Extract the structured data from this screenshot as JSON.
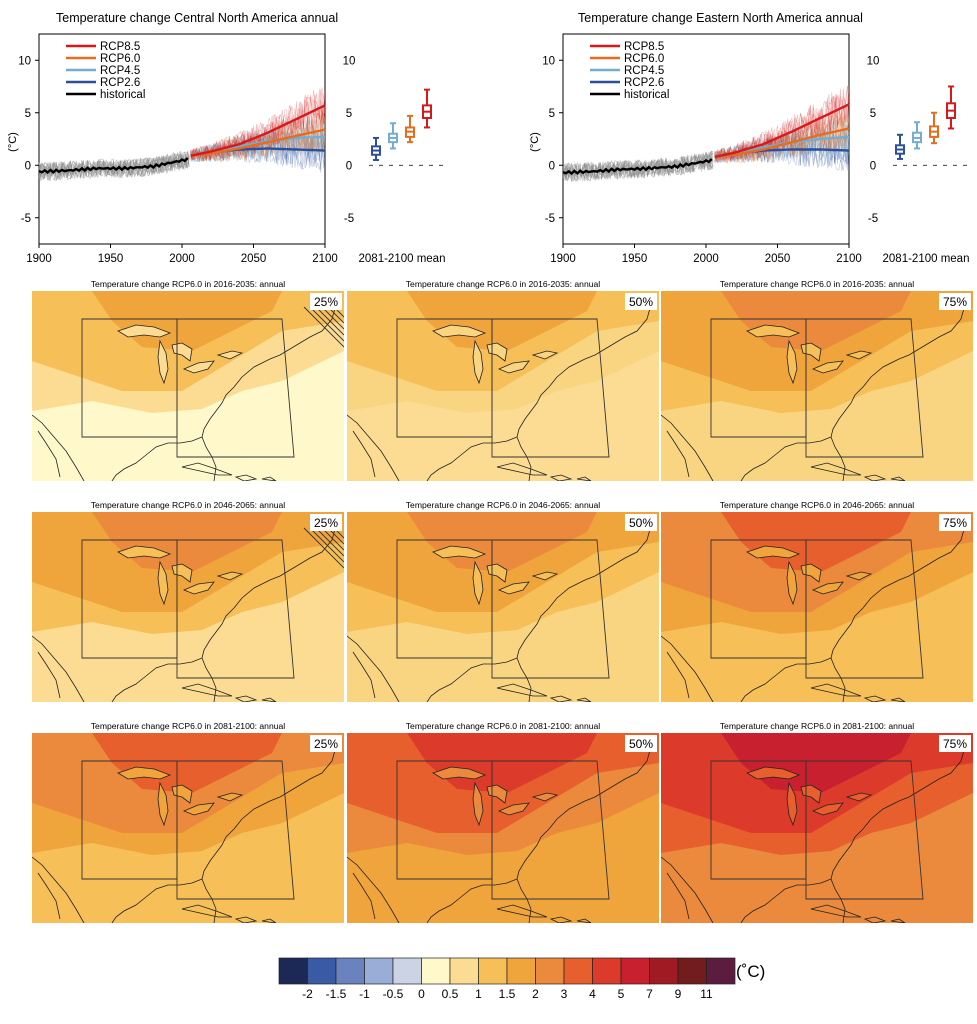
{
  "chart_data": [
    {
      "type": "line",
      "title": "Temperature change Central North America annual",
      "ylabel": "(°C)",
      "xlim": [
        1900,
        2100
      ],
      "ylim": [
        -7.5,
        12.5
      ],
      "x_ticks": [
        "1900",
        "1950",
        "2000",
        "2050",
        "2100"
      ],
      "y_ticks": [
        "10",
        "5",
        "0",
        "-5"
      ],
      "legend_position": "top-left",
      "series": [
        {
          "name": "RCP8.5",
          "color": "#d7191c",
          "x": [
            2006,
            2020,
            2040,
            2060,
            2080,
            2100
          ],
          "values": [
            0.9,
            1.3,
            2.0,
            3.1,
            4.4,
            5.7
          ]
        },
        {
          "name": "RCP6.0",
          "color": "#e66c1e",
          "x": [
            2006,
            2020,
            2040,
            2060,
            2080,
            2100
          ],
          "values": [
            0.9,
            1.1,
            1.6,
            2.2,
            2.8,
            3.4
          ]
        },
        {
          "name": "RCP4.5",
          "color": "#74add1",
          "x": [
            2006,
            2020,
            2040,
            2060,
            2080,
            2100
          ],
          "values": [
            0.9,
            1.2,
            1.8,
            2.3,
            2.6,
            2.7
          ]
        },
        {
          "name": "RCP2.6",
          "color": "#2c4f9a",
          "x": [
            2006,
            2020,
            2040,
            2060,
            2080,
            2100
          ],
          "values": [
            0.9,
            1.2,
            1.5,
            1.6,
            1.5,
            1.4
          ]
        },
        {
          "name": "historical",
          "color": "#000000",
          "x": [
            1900,
            1920,
            1940,
            1960,
            1980,
            2005
          ],
          "values": [
            -0.6,
            -0.5,
            -0.3,
            -0.3,
            -0.1,
            0.6
          ]
        }
      ],
      "side_panel": {
        "label": "2081-2100 mean",
        "boxes": [
          {
            "name": "RCP2.6",
            "color": "#2c4f9a",
            "min": 0.5,
            "q1": 1.0,
            "median": 1.4,
            "q3": 1.8,
            "max": 2.6
          },
          {
            "name": "RCP4.5",
            "color": "#74add1",
            "min": 1.6,
            "q1": 2.2,
            "median": 2.6,
            "q3": 3.0,
            "max": 4.0
          },
          {
            "name": "RCP6.0",
            "color": "#e66c1e",
            "min": 2.2,
            "q1": 2.7,
            "median": 3.2,
            "q3": 3.6,
            "max": 4.7
          },
          {
            "name": "RCP8.5",
            "color": "#d7191c",
            "min": 3.6,
            "q1": 4.5,
            "median": 5.1,
            "q3": 5.7,
            "max": 7.2
          }
        ],
        "zero_line": true
      }
    },
    {
      "type": "line",
      "title": "Temperature change Eastern North America annual",
      "ylabel": "(°C)",
      "xlim": [
        1900,
        2100
      ],
      "ylim": [
        -7.5,
        12.5
      ],
      "x_ticks": [
        "1900",
        "1950",
        "2000",
        "2050",
        "2100"
      ],
      "y_ticks": [
        "10",
        "5",
        "0",
        "-5"
      ],
      "legend_position": "top-left",
      "series": [
        {
          "name": "RCP8.5",
          "color": "#d7191c",
          "x": [
            2006,
            2020,
            2040,
            2060,
            2080,
            2100
          ],
          "values": [
            0.8,
            1.2,
            2.0,
            3.2,
            4.5,
            5.8
          ]
        },
        {
          "name": "RCP6.0",
          "color": "#e66c1e",
          "x": [
            2006,
            2020,
            2040,
            2060,
            2080,
            2100
          ],
          "values": [
            0.8,
            1.0,
            1.5,
            2.2,
            2.9,
            3.5
          ]
        },
        {
          "name": "RCP4.5",
          "color": "#74add1",
          "x": [
            2006,
            2020,
            2040,
            2060,
            2080,
            2100
          ],
          "values": [
            0.8,
            1.1,
            1.7,
            2.2,
            2.5,
            2.7
          ]
        },
        {
          "name": "RCP2.6",
          "color": "#2c4f9a",
          "x": [
            2006,
            2020,
            2040,
            2060,
            2080,
            2100
          ],
          "values": [
            0.8,
            1.1,
            1.4,
            1.5,
            1.5,
            1.4
          ]
        },
        {
          "name": "historical",
          "color": "#000000",
          "x": [
            1900,
            1920,
            1940,
            1960,
            1980,
            2005
          ],
          "values": [
            -0.7,
            -0.6,
            -0.4,
            -0.3,
            -0.1,
            0.5
          ]
        }
      ],
      "side_panel": {
        "label": "2081-2100 mean",
        "boxes": [
          {
            "name": "RCP2.6",
            "color": "#2c4f9a",
            "min": 0.6,
            "q1": 1.1,
            "median": 1.5,
            "q3": 1.9,
            "max": 2.9
          },
          {
            "name": "RCP4.5",
            "color": "#74add1",
            "min": 1.6,
            "q1": 2.2,
            "median": 2.6,
            "q3": 3.1,
            "max": 4.1
          },
          {
            "name": "RCP6.0",
            "color": "#e66c1e",
            "min": 2.1,
            "q1": 2.7,
            "median": 3.2,
            "q3": 3.7,
            "max": 5.0
          },
          {
            "name": "RCP8.5",
            "color": "#d7191c",
            "min": 3.5,
            "q1": 4.5,
            "median": 5.2,
            "q3": 5.9,
            "max": 7.5
          }
        ],
        "zero_line": true
      }
    },
    {
      "type": "heatmap",
      "title": "Temperature change RCP6.0 in 2016-2035: annual",
      "percentile": "25%",
      "colors": {
        "a": "#fef8cb",
        "b": "#fbdc92",
        "c": "#f6bf57",
        "d": "#f0a43c"
      },
      "hatching": true
    },
    {
      "type": "heatmap",
      "title": "Temperature change RCP6.0 in 2016-2035: annual",
      "percentile": "50%",
      "colors": {
        "a": "#fbdc92",
        "b": "#f9d581",
        "c": "#f6bf57",
        "d": "#f0a43c"
      },
      "hatching": false
    },
    {
      "type": "heatmap",
      "title": "Temperature change RCP6.0 in 2016-2035: annual",
      "percentile": "75%",
      "colors": {
        "a": "#f9d581",
        "b": "#f6bf57",
        "c": "#f0a43c",
        "d": "#eb8a3c"
      },
      "hatching": false
    },
    {
      "type": "heatmap",
      "title": "Temperature change RCP6.0 in 2046-2065: annual",
      "percentile": "25%",
      "colors": {
        "a": "#fbdc92",
        "b": "#f6bf57",
        "c": "#f0a43c",
        "d": "#eb8a3c"
      },
      "hatching": true
    },
    {
      "type": "heatmap",
      "title": "Temperature change RCP6.0 in 2046-2065: annual",
      "percentile": "50%",
      "colors": {
        "a": "#f9d581",
        "b": "#f6bf57",
        "c": "#f0a43c",
        "d": "#eb8a3c"
      },
      "hatching": false
    },
    {
      "type": "heatmap",
      "title": "Temperature change RCP6.0 in 2046-2065: annual",
      "percentile": "75%",
      "colors": {
        "a": "#f6bf57",
        "b": "#f0a43c",
        "c": "#eb8a3c",
        "d": "#e85f2e"
      },
      "hatching": false
    },
    {
      "type": "heatmap",
      "title": "Temperature change RCP6.0 in 2081-2100: annual",
      "percentile": "25%",
      "colors": {
        "a": "#f6bf57",
        "b": "#f0a43c",
        "c": "#eb8a3c",
        "d": "#e85f2e"
      },
      "hatching": false
    },
    {
      "type": "heatmap",
      "title": "Temperature change RCP6.0 in 2081-2100: annual",
      "percentile": "50%",
      "colors": {
        "a": "#f0a43c",
        "b": "#eb8a3c",
        "c": "#e85f2e",
        "d": "#dc3a2a"
      },
      "hatching": false
    },
    {
      "type": "heatmap",
      "title": "Temperature change RCP6.0 in 2081-2100: annual",
      "percentile": "75%",
      "colors": {
        "a": "#eb8a3c",
        "b": "#e85f2e",
        "c": "#dc3a2a",
        "d": "#c8202e"
      },
      "hatching": false
    }
  ],
  "colorbar": {
    "unit": "(˚C)",
    "bins": [
      {
        "color": "#1c2957"
      },
      {
        "color": "#3a5aa6"
      },
      {
        "color": "#6a82bd"
      },
      {
        "color": "#98aed6"
      },
      {
        "color": "#cbd3e4"
      },
      {
        "color": "#fef8cb"
      },
      {
        "color": "#fbdc92"
      },
      {
        "color": "#f6bf57"
      },
      {
        "color": "#f0a43c"
      },
      {
        "color": "#eb8a3c"
      },
      {
        "color": "#e85f2e"
      },
      {
        "color": "#dc3a2a"
      },
      {
        "color": "#c8202e"
      },
      {
        "color": "#a01a24"
      },
      {
        "color": "#731c1e"
      },
      {
        "color": "#5c1c3f"
      }
    ],
    "labels": [
      "-2",
      "-1.5",
      "-1",
      "-0.5",
      "0",
      "0.5",
      "1",
      "1.5",
      "2",
      "3",
      "4",
      "5",
      "7",
      "9",
      "11"
    ]
  }
}
